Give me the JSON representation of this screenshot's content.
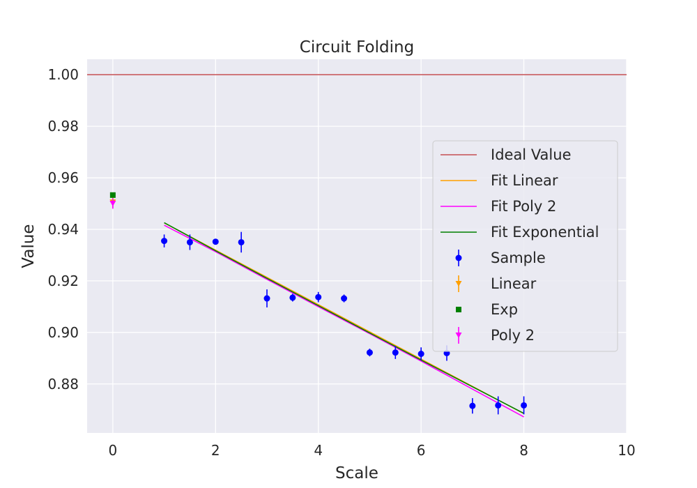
{
  "chart_data": {
    "type": "scatter",
    "title": "Circuit Folding",
    "xlabel": "Scale",
    "ylabel": "Value",
    "xlim": [
      -0.5,
      10
    ],
    "ylim": [
      0.861,
      1.006
    ],
    "xticks": [
      0,
      2,
      4,
      6,
      8,
      10
    ],
    "xtick_labels": [
      "0",
      "2",
      "4",
      "6",
      "8",
      "10"
    ],
    "yticks": [
      0.88,
      0.9,
      0.92,
      0.94,
      0.96,
      0.98,
      1.0
    ],
    "ytick_labels": [
      "0.88",
      "0.90",
      "0.92",
      "0.94",
      "0.96",
      "0.98",
      "1.00"
    ],
    "grid": true,
    "legend_position": "center-right",
    "ideal_value": {
      "name": "Ideal Value",
      "y": 1.0,
      "color": "#c44e52"
    },
    "fit_lines": [
      {
        "name": "Fit Linear",
        "color": "#ff9f00",
        "x": [
          1,
          8
        ],
        "y": [
          0.9425,
          0.8685
        ]
      },
      {
        "name": "Fit Poly 2",
        "color": "#ff00ff",
        "x": [
          1,
          2,
          3,
          4,
          5,
          6,
          7,
          8
        ],
        "y": [
          0.9416,
          0.9313,
          0.9206,
          0.91,
          0.8995,
          0.8889,
          0.878,
          0.8672
        ]
      },
      {
        "name": "Fit Exponential",
        "color": "#008000",
        "x": [
          1,
          2,
          3,
          4,
          5,
          6,
          7,
          8
        ],
        "y": [
          0.9426,
          0.9317,
          0.921,
          0.9104,
          0.8998,
          0.8893,
          0.8789,
          0.8686
        ]
      }
    ],
    "sample": {
      "name": "Sample",
      "color": "#0000ff",
      "x": [
        1,
        1.5,
        2,
        2.5,
        3,
        3.5,
        4,
        4.5,
        5,
        5.5,
        6,
        6.5,
        7,
        7.5,
        8
      ],
      "y": [
        0.9355,
        0.935,
        0.9352,
        0.935,
        0.9132,
        0.9135,
        0.9137,
        0.9132,
        0.8922,
        0.8922,
        0.8917,
        0.892,
        0.8715,
        0.8717,
        0.8717
      ],
      "err": [
        0.0025,
        0.003,
        0.001,
        0.004,
        0.0035,
        0.0015,
        0.002,
        0.0015,
        0.0015,
        0.0025,
        0.0025,
        0.003,
        0.003,
        0.0035,
        0.0035
      ]
    },
    "extrapolations": [
      {
        "name": "Linear",
        "color": "#ff9f00",
        "marker": "triangle-down",
        "x": 0,
        "y": 0.9505,
        "err": 0.002
      },
      {
        "name": "Exp",
        "color": "#008000",
        "marker": "square",
        "x": 0,
        "y": 0.9533,
        "err": 0
      },
      {
        "name": "Poly 2",
        "color": "#ff00ff",
        "marker": "triangle-down",
        "x": 0,
        "y": 0.95,
        "err": 0.002
      }
    ]
  }
}
